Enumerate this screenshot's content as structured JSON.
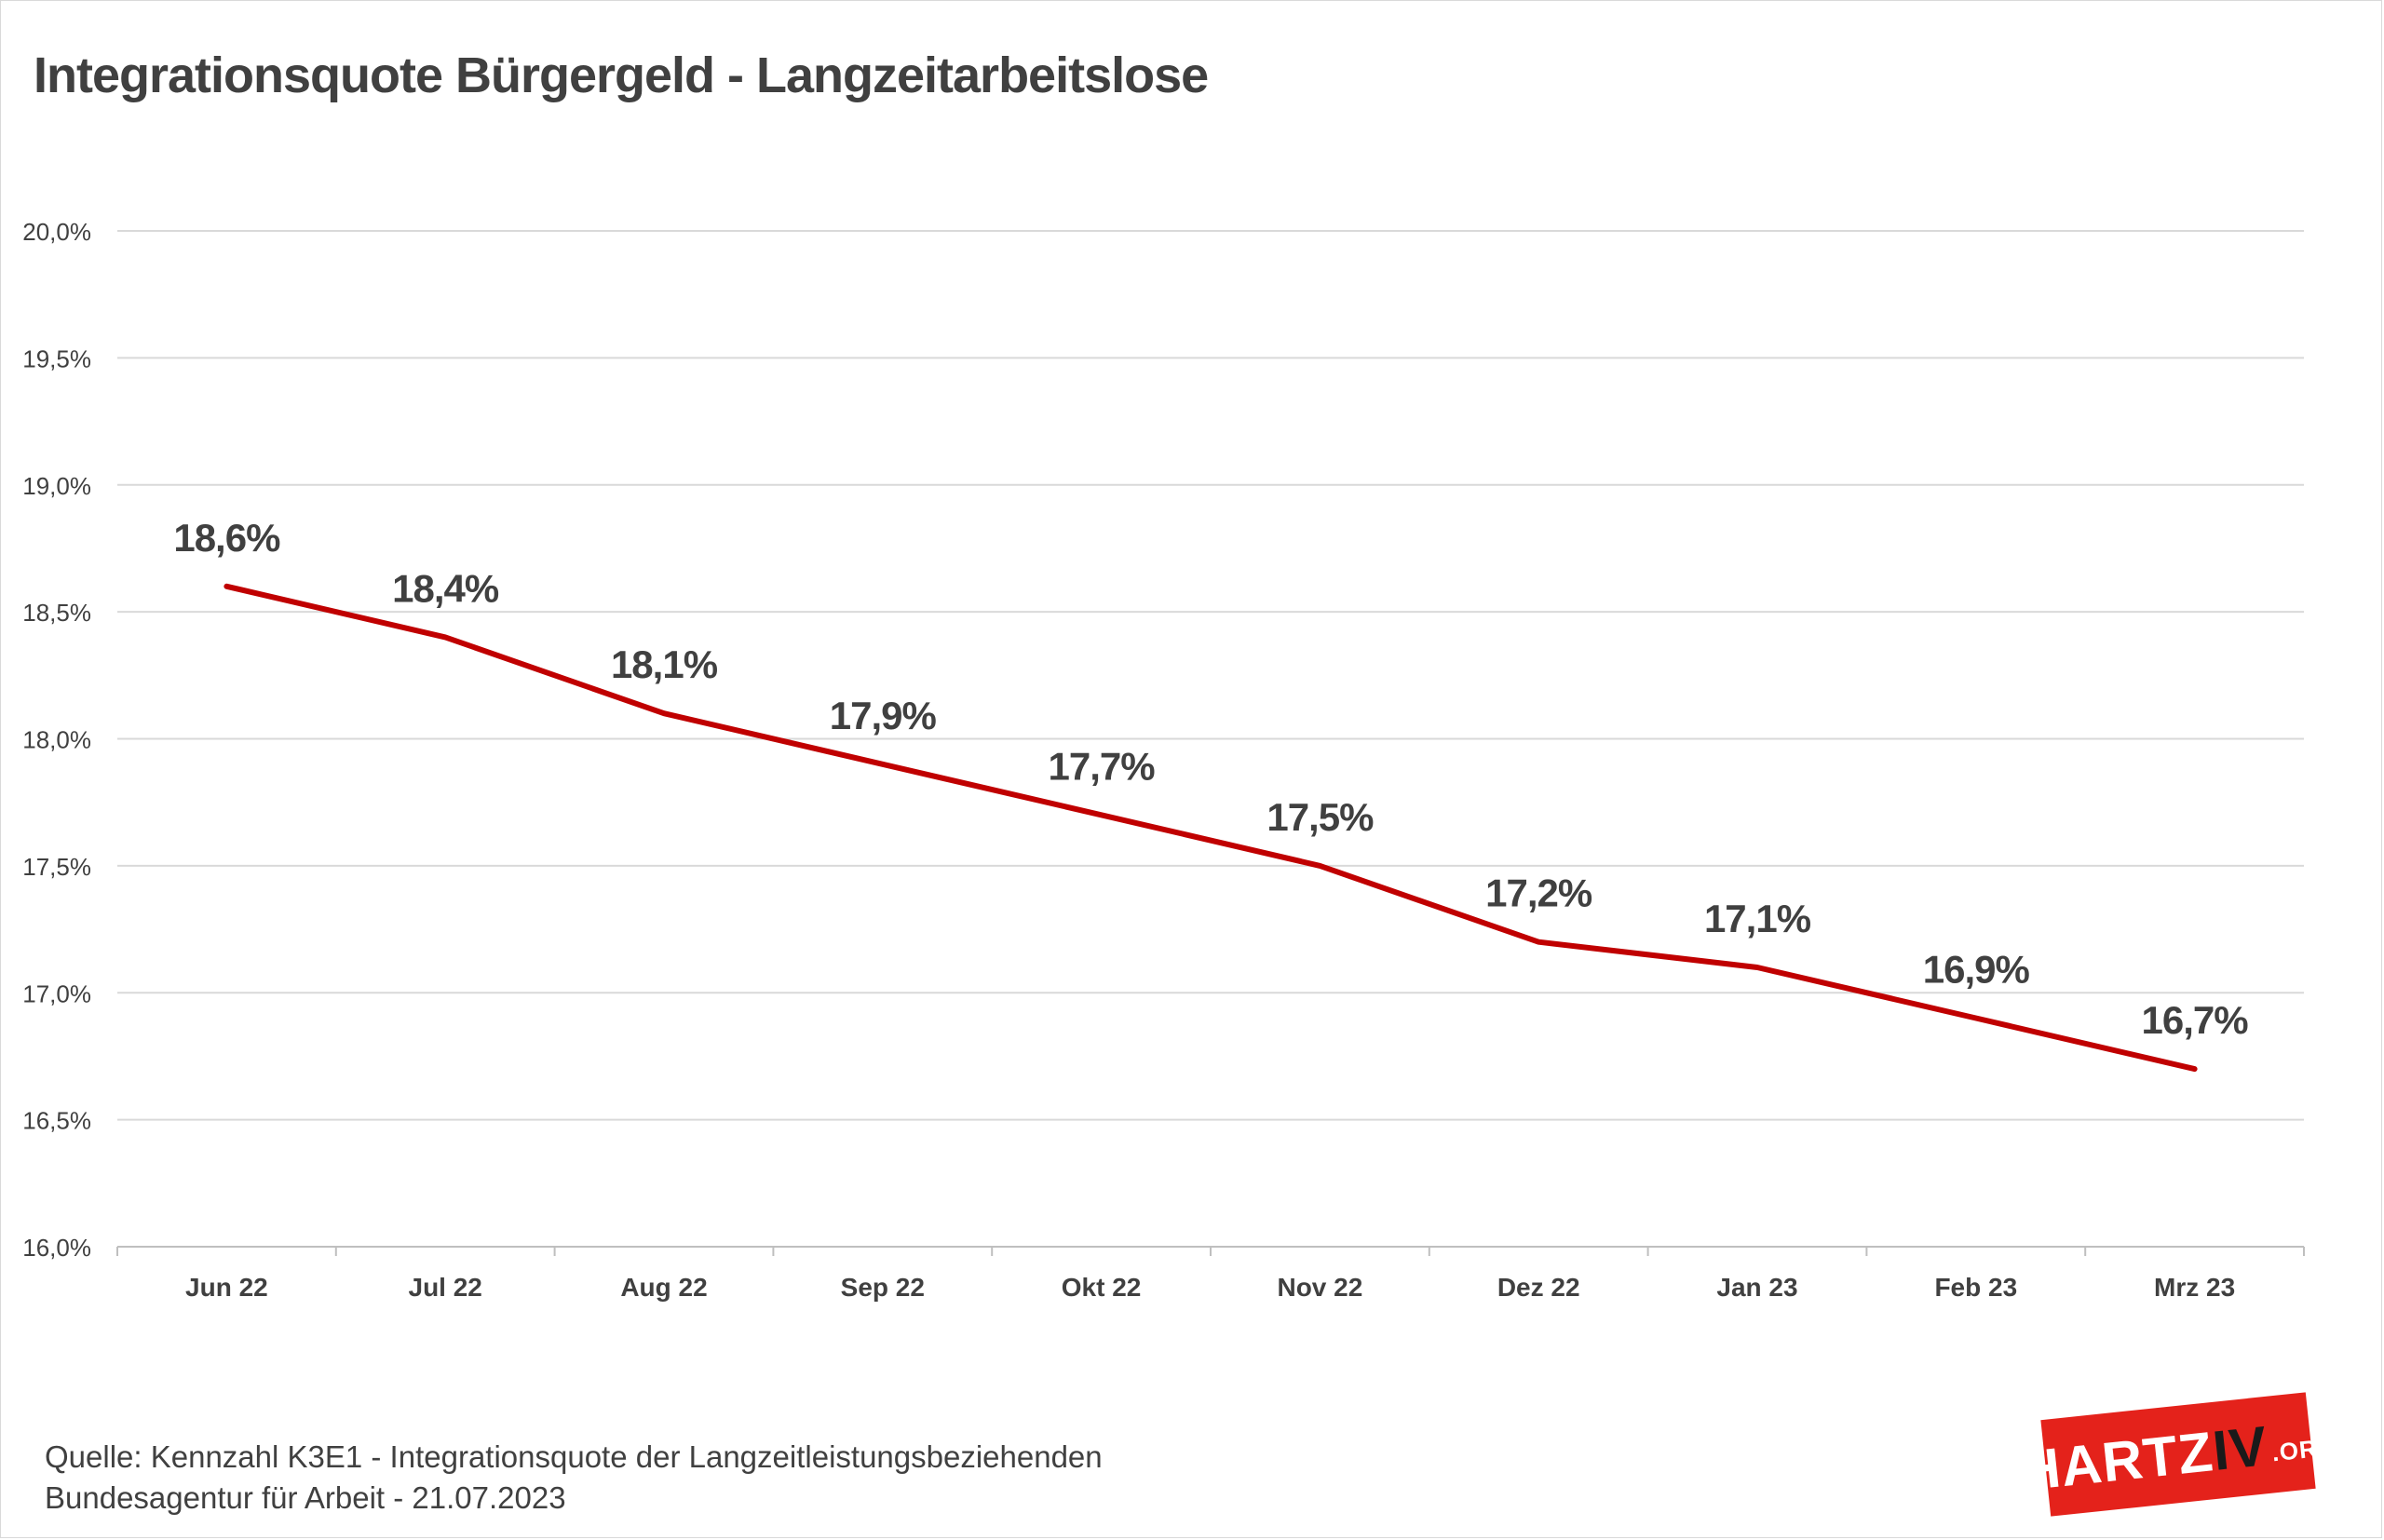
{
  "title": "Integrationsquote Bürgergeld - Langzeitarbeitslose",
  "source": {
    "line1": "Quelle: Kennzahl K3E1 - Integrationsquote der Langzeitleistungsbeziehenden",
    "line2": "Bundesagentur für Arbeit - 21.07.2023"
  },
  "logo": {
    "part1": "HARTZ",
    "part2": "IV",
    "part3": ".ORG"
  },
  "colors": {
    "line": "#c00000",
    "grid": "#d9d9d9",
    "text": "#404040",
    "logo_bg": "#e4221b"
  },
  "chart_data": {
    "type": "line",
    "categories": [
      "Jun 22",
      "Jul 22",
      "Aug 22",
      "Sep 22",
      "Okt 22",
      "Nov 22",
      "Dez 22",
      "Jan 23",
      "Feb 23",
      "Mrz 23"
    ],
    "series": [
      {
        "values": [
          18.6,
          18.4,
          18.1,
          17.9,
          17.7,
          17.5,
          17.2,
          17.1,
          16.9,
          16.7
        ],
        "labels": [
          "18,6%",
          "18,4%",
          "18,1%",
          "17,9%",
          "17,7%",
          "17,5%",
          "17,2%",
          "17,1%",
          "16,9%",
          "16,7%"
        ]
      }
    ],
    "ylim": [
      16.0,
      20.0
    ],
    "yticks": [
      16.0,
      16.5,
      17.0,
      17.5,
      18.0,
      18.5,
      19.0,
      19.5,
      20.0
    ],
    "ytick_labels": [
      "16,0%",
      "16,5%",
      "17,0%",
      "17,5%",
      "18,0%",
      "18,5%",
      "19,0%",
      "19,5%",
      "20,0%"
    ],
    "grid": true,
    "legend": "none",
    "xlabel": "",
    "ylabel": ""
  }
}
